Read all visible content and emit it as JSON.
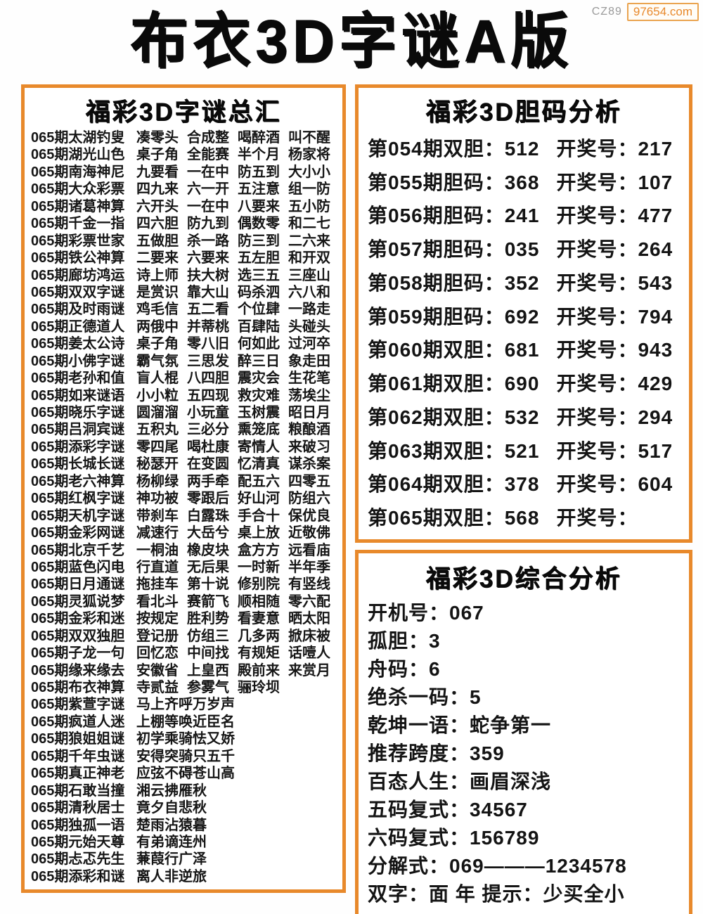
{
  "badge": {
    "prefix": "CZ89",
    "site": "97654.com"
  },
  "title": "布衣3D字谜A版",
  "colors": {
    "accent": "#e8892b",
    "text": "#111111"
  },
  "left_panel": {
    "header": "福彩3D字谜总汇",
    "rows": [
      {
        "name": "065期太湖钓叟",
        "cols": [
          "凑零头",
          "合成整",
          "喝醉酒",
          "叫不醒"
        ]
      },
      {
        "name": "065期湖光山色",
        "cols": [
          "桌子角",
          "全能赛",
          "半个月",
          "杨家将"
        ]
      },
      {
        "name": "065期南海神尼",
        "cols": [
          "九要看",
          "一在中",
          "防五到",
          "大小小"
        ]
      },
      {
        "name": "065期大众彩票",
        "cols": [
          "四九来",
          "六一开",
          "五注意",
          "组一防"
        ]
      },
      {
        "name": "065期诸葛神算",
        "cols": [
          "六开头",
          "一在中",
          "八要来",
          "五小防"
        ]
      },
      {
        "name": "065期千金一指",
        "cols": [
          "四六胆",
          "防九到",
          "偶数零",
          "和二七"
        ]
      },
      {
        "name": "065期彩票世家",
        "cols": [
          "五做胆",
          "杀一路",
          "防三到",
          "二六来"
        ]
      },
      {
        "name": "065期铁公神算",
        "cols": [
          "二要来",
          "六要来",
          "五左胆",
          "和开双"
        ]
      },
      {
        "name": "065期廊坊鸿运",
        "cols": [
          "诗上师",
          "扶大树",
          "选三五",
          "三座山"
        ]
      },
      {
        "name": "065期双双字谜",
        "cols": [
          "是赏识",
          "靠大山",
          "码杀泗",
          "六八和"
        ]
      },
      {
        "name": "065期及时雨谜",
        "cols": [
          "鸡毛信",
          "五二看",
          "个位肆",
          "一路走"
        ]
      },
      {
        "name": "065期正德道人",
        "cols": [
          "两俄中",
          "并蒂桃",
          "百肆陆",
          "头碰头"
        ]
      },
      {
        "name": "065期姜太公诗",
        "cols": [
          "桌子角",
          "零八旧",
          "何如此",
          "过河卒"
        ]
      },
      {
        "name": "065期小佛字谜",
        "cols": [
          "霸气氛",
          "三思发",
          "醉三日",
          "象走田"
        ]
      },
      {
        "name": "065期老孙和值",
        "cols": [
          "盲人棍",
          "八四胆",
          "震灾会",
          "生花笔"
        ]
      },
      {
        "name": "065期如来谜语",
        "cols": [
          "小小粒",
          "五四现",
          "救灾难",
          "荡埃尘"
        ]
      },
      {
        "name": "065期晓乐字谜",
        "cols": [
          "圆溜溜",
          "小玩童",
          "玉树震",
          "昭日月"
        ]
      },
      {
        "name": "065期吕洞宾谜",
        "cols": [
          "五积丸",
          "三必分",
          "熏笼底",
          "粮酿酒"
        ]
      },
      {
        "name": "065期添彩字谜",
        "cols": [
          "零四尾",
          "喝杜康",
          "寄情人",
          "来破习"
        ]
      },
      {
        "name": "065期长城长谜",
        "cols": [
          "秘瑟开",
          "在变圆",
          "忆清真",
          "谋杀案"
        ]
      },
      {
        "name": "065期老六神算",
        "cols": [
          "杨柳绿",
          "两手牵",
          "配五六",
          "四零五"
        ]
      },
      {
        "name": "065期红枫字谜",
        "cols": [
          "神功被",
          "零跟后",
          "好山河",
          "防组六"
        ]
      },
      {
        "name": "065期天机字谜",
        "cols": [
          "带刹车",
          "白露珠",
          "手合十",
          "保优良"
        ]
      },
      {
        "name": "065期金彩网谜",
        "cols": [
          "减速行",
          "大岳兮",
          "桌上放",
          "近敬佛"
        ]
      },
      {
        "name": "065期北京千艺",
        "cols": [
          "一桐油",
          "橡皮块",
          "盒方方",
          "远看庙"
        ]
      },
      {
        "name": "065期蓝色闪电",
        "cols": [
          "行直道",
          "无后果",
          "一时新",
          "半年季"
        ]
      },
      {
        "name": "065期日月通谜",
        "cols": [
          "拖挂车",
          "第十说",
          "修别院",
          "有竖线"
        ]
      },
      {
        "name": "065期灵狐说梦",
        "cols": [
          "看北斗",
          "赛箭飞",
          "顺相随",
          "零六配"
        ]
      },
      {
        "name": "065期金彩和迷",
        "cols": [
          "按规定",
          "胜利势",
          "看妻意",
          "晒太阳"
        ]
      },
      {
        "name": "065期双双独胆",
        "cols": [
          "登记册",
          "仿组三",
          "几多两",
          "掀床被"
        ]
      },
      {
        "name": "065期子龙一句",
        "cols": [
          "回忆恋",
          "中间找",
          "有规矩",
          "话噎人"
        ]
      },
      {
        "name": "065期缘来缘去",
        "cols": [
          "安徽省",
          "上皇西",
          "殿前来",
          "来赏月"
        ]
      },
      {
        "name": "065期布衣神算",
        "cols": [
          "寺贰益",
          "参雾气",
          "骊玲坝"
        ]
      },
      {
        "name": "065期紫萱字谜",
        "cols": [
          "马上齐呼万岁声"
        ]
      },
      {
        "name": "065期疯道人迷",
        "cols": [
          "上棚等唤近臣名"
        ]
      },
      {
        "name": "065期狼姐姐谜",
        "cols": [
          "初学乘骑怯又娇"
        ]
      },
      {
        "name": "065期千年虫谜",
        "cols": [
          "安得突骑只五千"
        ]
      },
      {
        "name": "065期真正神老",
        "cols": [
          "应弦不碍苍山高"
        ]
      },
      {
        "name": "065期石敢当撞",
        "cols": [
          "湘云拂雁秋"
        ]
      },
      {
        "name": "065期清秋居士",
        "cols": [
          "竟夕自悲秋"
        ]
      },
      {
        "name": "065期独孤一语",
        "cols": [
          "楚雨沾猿暮"
        ]
      },
      {
        "name": "065期元始天尊",
        "cols": [
          "有弟谪连州"
        ]
      },
      {
        "name": "065期忐忑先生",
        "cols": [
          "蒹葭行广泽"
        ]
      },
      {
        "name": "065期添彩和谜",
        "cols": [
          "离人非逆旅"
        ]
      }
    ]
  },
  "danma_panel": {
    "header": "福彩3D胆码分析",
    "rows": [
      {
        "left": "第054期双胆：512",
        "right": "开奖号：217"
      },
      {
        "left": "第055期胆码：368",
        "right": "开奖号：107"
      },
      {
        "left": "第056期胆码：241",
        "right": "开奖号：477"
      },
      {
        "left": "第057期胆码：035",
        "right": "开奖号：264"
      },
      {
        "left": "第058期胆码：352",
        "right": "开奖号：543"
      },
      {
        "left": "第059期胆码：692",
        "right": "开奖号：794"
      },
      {
        "left": "第060期双胆：681",
        "right": "开奖号：943"
      },
      {
        "left": "第061期双胆：690",
        "right": "开奖号：429"
      },
      {
        "left": "第062期双胆：532",
        "right": "开奖号：294"
      },
      {
        "left": "第063期双胆：521",
        "right": "开奖号：517"
      },
      {
        "left": "第064期双胆：378",
        "right": "开奖号：604"
      },
      {
        "left": "第065期双胆：568",
        "right": "开奖号："
      }
    ]
  },
  "analysis_panel": {
    "header": "福彩3D综合分析",
    "rows": [
      "开机号：067",
      "孤胆：3",
      "舟码：6",
      "绝杀一码：5",
      "乾坤一语：蛇争第一",
      "推荐跨度：359",
      "百态人生：画眉深浅",
      "五码复式：34567",
      "六码复式：156789",
      "分解式：069———1234578",
      "双字：面 年 提示：少买全小"
    ]
  }
}
